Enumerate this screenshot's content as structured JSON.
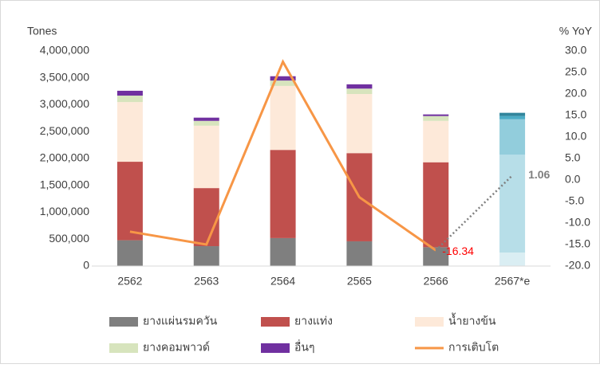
{
  "chart_data": {
    "type": "stacked_bar_line",
    "y_axis_label": "Tones",
    "y2_axis_label": "% YoY",
    "categories": [
      "2562",
      "2563",
      "2564",
      "2565",
      "2566",
      "2567*e"
    ],
    "ylim": [
      0,
      4000000
    ],
    "yticks": [
      0,
      {
        "value": 500000,
        "label": "500,000"
      },
      {
        "value": 1000000,
        "label": "1,000,000"
      },
      {
        "value": 1500000,
        "label": "1,500,000"
      },
      {
        "value": 2000000,
        "label": "2,000,000"
      },
      {
        "value": 2500000,
        "label": "2,500,000"
      },
      {
        "value": 3000000,
        "label": "3,000,000"
      },
      {
        "value": 3500000,
        "label": "3,500,000"
      },
      {
        "value": 4000000,
        "label": "4,000,000"
      }
    ],
    "y2lim": [
      -20,
      30
    ],
    "y2ticks": [
      {
        "value": -20,
        "label": "-20.0"
      },
      {
        "value": -15,
        "label": "-15.0"
      },
      {
        "value": -10,
        "label": "-10.0"
      },
      {
        "value": -5,
        "label": "-5.0"
      },
      {
        "value": 0,
        "label": "0.0"
      },
      {
        "value": 5,
        "label": "5.0"
      },
      {
        "value": 10,
        "label": "10.0"
      },
      {
        "value": 15,
        "label": "15.0"
      },
      {
        "value": 20,
        "label": "20.0"
      },
      {
        "value": 25,
        "label": "25.0"
      },
      {
        "value": 30,
        "label": "30.0"
      }
    ],
    "series": [
      {
        "name": "ยางแผ่นรมควัน",
        "color": "#7f7f7f",
        "forecast_color": "#daeef3",
        "values": [
          480000,
          370000,
          520000,
          460000,
          350000,
          250000
        ]
      },
      {
        "name": "ยางแท่ง",
        "color": "#c0504d",
        "forecast_color": "#b7dee8",
        "values": [
          1460000,
          1080000,
          1640000,
          1640000,
          1580000,
          1820000
        ]
      },
      {
        "name": "น้ำยางข้น",
        "color": "#fde9d9",
        "forecast_color": "#92cddc",
        "values": [
          1110000,
          1160000,
          1190000,
          1100000,
          770000,
          660000
        ]
      },
      {
        "name": "ยางคอมพาวด์",
        "color": "#d7e4bd",
        "forecast_color": "#4bacc6",
        "values": [
          120000,
          90000,
          100000,
          100000,
          90000,
          60000
        ]
      },
      {
        "name": "อื่นๆ",
        "color": "#7030a0",
        "forecast_color": "#31859c",
        "values": [
          90000,
          60000,
          80000,
          80000,
          30000,
          60000
        ]
      },
      {
        "name": "การเติบโต",
        "type": "line",
        "axis": "y2",
        "color": "#f79646",
        "forecast_color": "#7f7f7f",
        "forecast_from_index": 4,
        "values": [
          -12,
          -15,
          27.5,
          -4,
          -16.34,
          1.06
        ],
        "value_labels": [
          null,
          null,
          null,
          null,
          "-16.34",
          "1.06"
        ],
        "value_label_colors": [
          null,
          null,
          null,
          null,
          "#ff0000",
          "#7f7f7f"
        ]
      }
    ]
  }
}
